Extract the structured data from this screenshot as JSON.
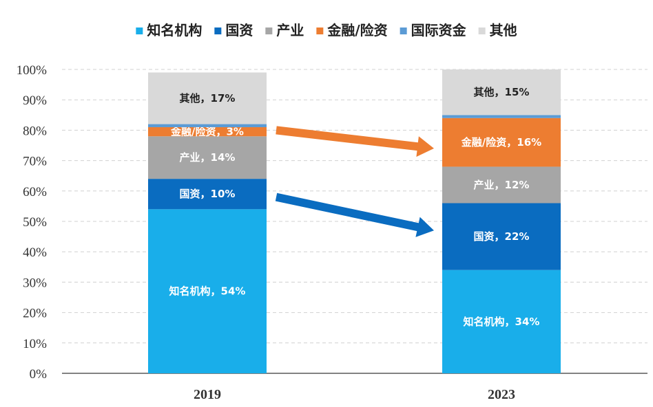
{
  "chart_data": {
    "type": "bar",
    "stacked": true,
    "categories": [
      "2019",
      "2023"
    ],
    "series": [
      {
        "name": "知名机构",
        "color": "#19AEEA",
        "values": [
          54,
          34
        ],
        "labels": [
          "知名机构，54%",
          "知名机构，34%"
        ]
      },
      {
        "name": "国资",
        "color": "#0A6CC0",
        "values": [
          10,
          22
        ],
        "labels": [
          "国资，10%",
          "国资，22%"
        ]
      },
      {
        "name": "产业",
        "color": "#A6A6A6",
        "values": [
          14,
          12
        ],
        "labels": [
          "产业，14%",
          "产业，12%"
        ]
      },
      {
        "name": "金融/险资",
        "color": "#ED7D31",
        "values": [
          3,
          16
        ],
        "labels": [
          "金融/险资，3%",
          "金融/险资，16%"
        ]
      },
      {
        "name": "国际资金",
        "color": "#5B9BD5",
        "values": [
          1,
          1
        ],
        "labels": [
          "",
          ""
        ]
      },
      {
        "name": "其他",
        "color": "#D9D9D9",
        "values": [
          17,
          15
        ],
        "labels": [
          "其他，17%",
          "其他，15%"
        ]
      }
    ],
    "ylim": [
      0,
      100
    ],
    "yticks": [
      "0%",
      "10%",
      "20%",
      "30%",
      "40%",
      "50%",
      "60%",
      "70%",
      "80%",
      "90%",
      "100%"
    ],
    "grid": true,
    "legend_position": "top",
    "annotations": [
      {
        "type": "arrow",
        "color": "#ED7D31",
        "from": {
          "category": "2019",
          "value": 80
        },
        "to": {
          "category": "2023",
          "value": 74
        }
      },
      {
        "type": "arrow",
        "color": "#0A6CC0",
        "from": {
          "category": "2019",
          "value": 58
        },
        "to": {
          "category": "2023",
          "value": 47
        }
      }
    ]
  }
}
